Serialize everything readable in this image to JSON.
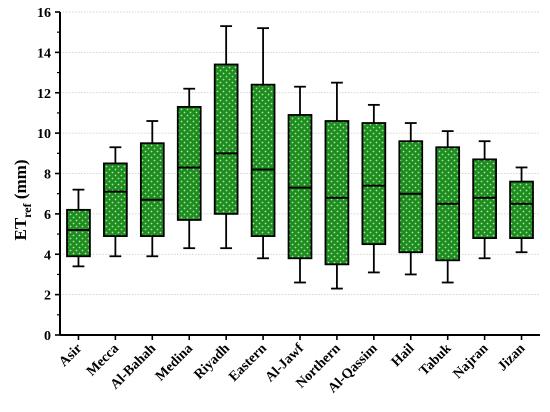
{
  "chart_data": {
    "type": "box",
    "categories": [
      "Asir",
      "Mecca",
      "Al-Bahah",
      "Medina",
      "Riyadh",
      "Eastern",
      "Al-Jawf",
      "Northern",
      "Al-Qassim",
      "Hail",
      "Tabuk",
      "Najran",
      "Jizan"
    ],
    "boxes": [
      {
        "min": 3.4,
        "q1": 3.9,
        "median": 5.2,
        "q3": 6.2,
        "max": 7.2
      },
      {
        "min": 3.9,
        "q1": 4.9,
        "median": 7.1,
        "q3": 8.5,
        "max": 9.3
      },
      {
        "min": 3.9,
        "q1": 4.9,
        "median": 6.7,
        "q3": 9.5,
        "max": 10.6
      },
      {
        "min": 4.3,
        "q1": 5.7,
        "median": 8.3,
        "q3": 11.3,
        "max": 12.2
      },
      {
        "min": 4.3,
        "q1": 6.0,
        "median": 9.0,
        "q3": 13.4,
        "max": 15.3
      },
      {
        "min": 3.8,
        "q1": 4.9,
        "median": 8.2,
        "q3": 12.4,
        "max": 15.2
      },
      {
        "min": 2.6,
        "q1": 3.8,
        "median": 7.3,
        "q3": 10.9,
        "max": 12.3
      },
      {
        "min": 2.3,
        "q1": 3.5,
        "median": 6.8,
        "q3": 10.6,
        "max": 12.5
      },
      {
        "min": 3.1,
        "q1": 4.5,
        "median": 7.4,
        "q3": 10.5,
        "max": 11.4
      },
      {
        "min": 3.0,
        "q1": 4.1,
        "median": 7.0,
        "q3": 9.6,
        "max": 10.5
      },
      {
        "min": 2.6,
        "q1": 3.7,
        "median": 6.5,
        "q3": 9.3,
        "max": 10.1
      },
      {
        "min": 3.8,
        "q1": 4.8,
        "median": 6.8,
        "q3": 8.7,
        "max": 9.6
      },
      {
        "min": 4.1,
        "q1": 4.8,
        "median": 6.5,
        "q3": 7.6,
        "max": 8.3
      }
    ],
    "ylabel_main": "ET",
    "ylabel_sub": "ref",
    "ylabel_unit": " (mm)",
    "ylim": [
      0,
      16
    ],
    "yticks": [
      "0",
      "2",
      "4",
      "6",
      "8",
      "10",
      "12",
      "14",
      "16"
    ],
    "grid": true,
    "box_color": "#1e8c1e",
    "dot_color": "#a8e6a8",
    "grid_color": "#c8c8c8"
  }
}
